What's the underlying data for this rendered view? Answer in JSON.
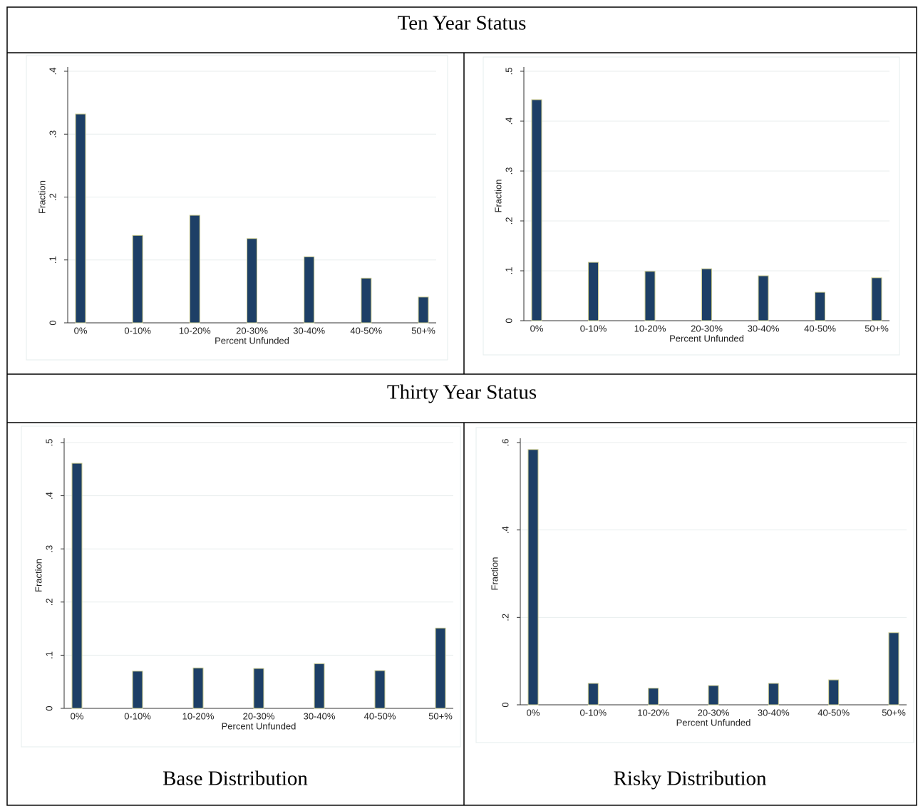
{
  "headers": [
    "Ten Year Status",
    "Thirty Year Status"
  ],
  "captions": [
    "Base Distribution",
    "Risky Distribution"
  ],
  "chart_data": [
    {
      "type": "bar",
      "ylabel": "Fraction",
      "xlabel": "Percent Unfunded",
      "color": "#1d3f66",
      "grid": true,
      "categories": [
        "0%",
        "0-10%",
        "10-20%",
        "20-30%",
        "30-40%",
        "40-50%",
        "50+%"
      ],
      "values": [
        0.332,
        0.139,
        0.171,
        0.134,
        0.105,
        0.071,
        0.041
      ],
      "ylim": [
        0,
        0.4
      ],
      "yticks": [
        0,
        {
          "value": 0.1,
          "label": ".1"
        },
        {
          "value": 0.2,
          "label": ".2"
        },
        {
          "value": 0.3,
          "label": ".3"
        },
        {
          "value": 0.4,
          "label": ".4"
        }
      ]
    },
    {
      "type": "bar",
      "ylabel": "Fraction",
      "xlabel": "Percent Unfunded",
      "color": "#1d3f66",
      "grid": true,
      "categories": [
        "0%",
        "0-10%",
        "10-20%",
        "20-30%",
        "30-40%",
        "40-50%",
        "50+%"
      ],
      "values": [
        0.443,
        0.117,
        0.099,
        0.104,
        0.09,
        0.057,
        0.086
      ],
      "ylim": [
        0,
        0.5
      ],
      "yticks": [
        0,
        {
          "value": 0.1,
          "label": ".1"
        },
        {
          "value": 0.2,
          "label": ".2"
        },
        {
          "value": 0.3,
          "label": ".3"
        },
        {
          "value": 0.4,
          "label": ".4"
        },
        {
          "value": 0.5,
          "label": ".5"
        }
      ]
    },
    {
      "type": "bar",
      "ylabel": "Fraction",
      "xlabel": "Percent Unfunded",
      "color": "#1d3f66",
      "grid": true,
      "categories": [
        "0%",
        "0-10%",
        "10-20%",
        "20-30%",
        "30-40%",
        "40-50%",
        "50+%"
      ],
      "values": [
        0.461,
        0.07,
        0.076,
        0.075,
        0.084,
        0.071,
        0.151
      ],
      "ylim": [
        0,
        0.5
      ],
      "yticks": [
        0,
        {
          "value": 0.1,
          "label": ".1"
        },
        {
          "value": 0.2,
          "label": ".2"
        },
        {
          "value": 0.3,
          "label": ".3"
        },
        {
          "value": 0.4,
          "label": ".4"
        },
        {
          "value": 0.5,
          "label": ".5"
        }
      ]
    },
    {
      "type": "bar",
      "ylabel": "Fraction",
      "xlabel": "Percent Unfunded",
      "color": "#1d3f66",
      "grid": true,
      "categories": [
        "0%",
        "0-10%",
        "10-20%",
        "20-30%",
        "30-40%",
        "40-50%",
        "50+%"
      ],
      "values": [
        0.584,
        0.049,
        0.038,
        0.044,
        0.049,
        0.057,
        0.165
      ],
      "ylim": [
        0,
        0.6
      ],
      "yticks": [
        0,
        {
          "value": 0.2,
          "label": ".2"
        },
        {
          "value": 0.4,
          "label": ".4"
        },
        {
          "value": 0.6,
          "label": ".6"
        }
      ]
    }
  ]
}
